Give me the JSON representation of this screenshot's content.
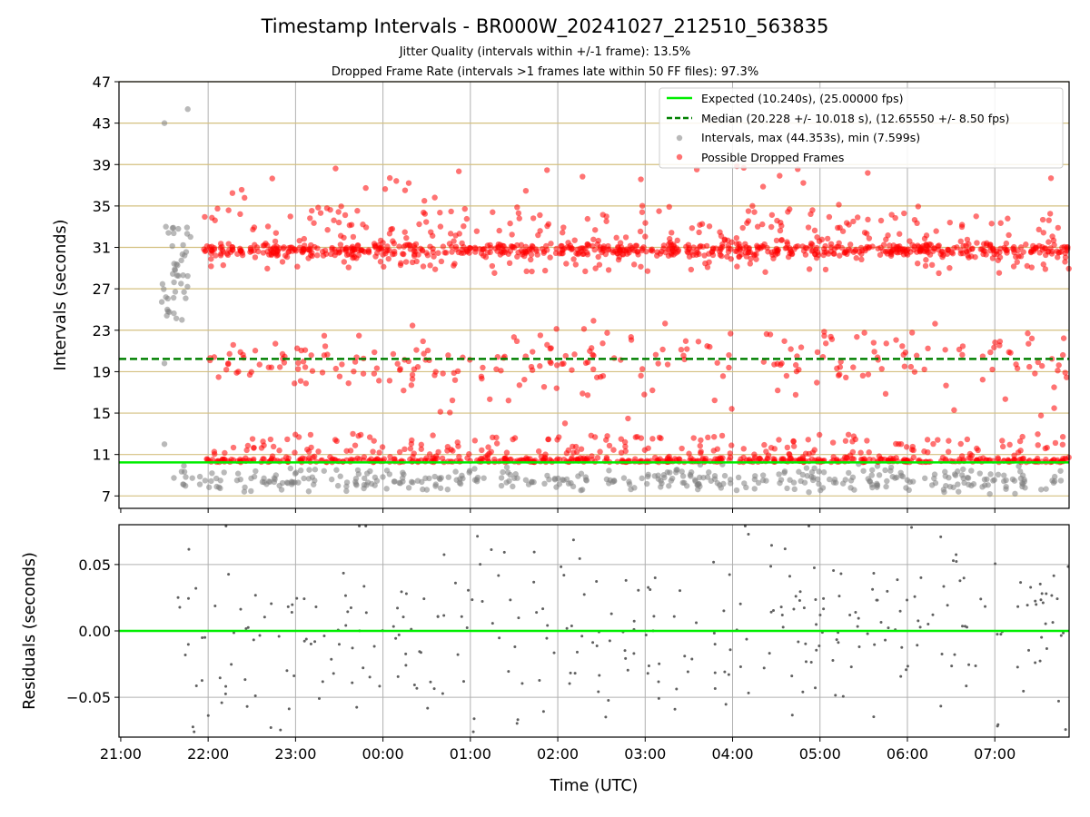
{
  "title": "Timestamp Intervals - BR000W_20241027_212510_563835",
  "subtitle1": "Jitter Quality (intervals within +/-1 frame): 13.5%",
  "subtitle2": "Dropped Frame Rate (intervals >1 frames late within 50 FF files): 97.3%",
  "chart_data": [
    {
      "type": "scatter",
      "ylabel": "Intervals (seconds)",
      "ylim": [
        5.8,
        47
      ],
      "yticks": [
        7,
        11,
        15,
        19,
        23,
        27,
        31,
        35,
        39,
        43,
        47
      ],
      "xlim_hours": [
        -0.02,
        10.85
      ],
      "grid": true,
      "legend_position": "upper-right",
      "colors": {
        "expected": "#00ee00",
        "median": "#008000",
        "intervals": "#808080",
        "dropped": "#ff0000",
        "hgrid": "#d4c080"
      },
      "expected_value": 10.24,
      "median_value": 20.228,
      "legend": [
        {
          "label": "Expected (10.240s), (25.00000 fps)",
          "style": "solid-line",
          "color": "#00ee00"
        },
        {
          "label": "Median (20.228 +/- 10.018 s), (12.65550 +/- 8.50 fps)",
          "style": "dashed-line",
          "color": "#008000"
        },
        {
          "label": "Intervals, max (44.353s), min (7.599s)",
          "style": "marker",
          "color": "#808080"
        },
        {
          "label": "Possible Dropped Frames",
          "style": "marker",
          "color": "#ff0000"
        }
      ],
      "intervals_summary": {
        "max": 44.353,
        "min": 7.599
      },
      "series_sample": {
        "dropped_bands_seconds": [
          10.24,
          20.48,
          30.72
        ],
        "early_gray_points": [
          {
            "t": "21:30",
            "y": 43.0
          },
          {
            "t": "21:46",
            "y": 44.35
          },
          {
            "t": "21:31",
            "y": 33.0
          },
          {
            "t": "21:31",
            "y": 26.2
          },
          {
            "t": "21:32",
            "y": 25.0
          },
          {
            "t": "21:30",
            "y": 19.8
          },
          {
            "t": "21:30",
            "y": 12.0
          },
          {
            "t": "21:42",
            "y": 24.0
          }
        ]
      }
    },
    {
      "type": "scatter",
      "xlabel": "Time (UTC)",
      "ylabel": "Residuals (seconds)",
      "ylim": [
        -0.08,
        0.08
      ],
      "yticks": [
        0.05,
        0.0,
        -0.05
      ],
      "ytick_labels": [
        "0.05",
        "0.00",
        "−0.05"
      ],
      "xtick_labels": [
        "21:00",
        "22:00",
        "23:00",
        "00:00",
        "01:00",
        "02:00",
        "03:00",
        "04:00",
        "05:00",
        "06:00",
        "07:00"
      ],
      "zero_line_color": "#00ee00",
      "point_color": "#606060",
      "residual_range": [
        -0.08,
        0.08
      ]
    }
  ]
}
